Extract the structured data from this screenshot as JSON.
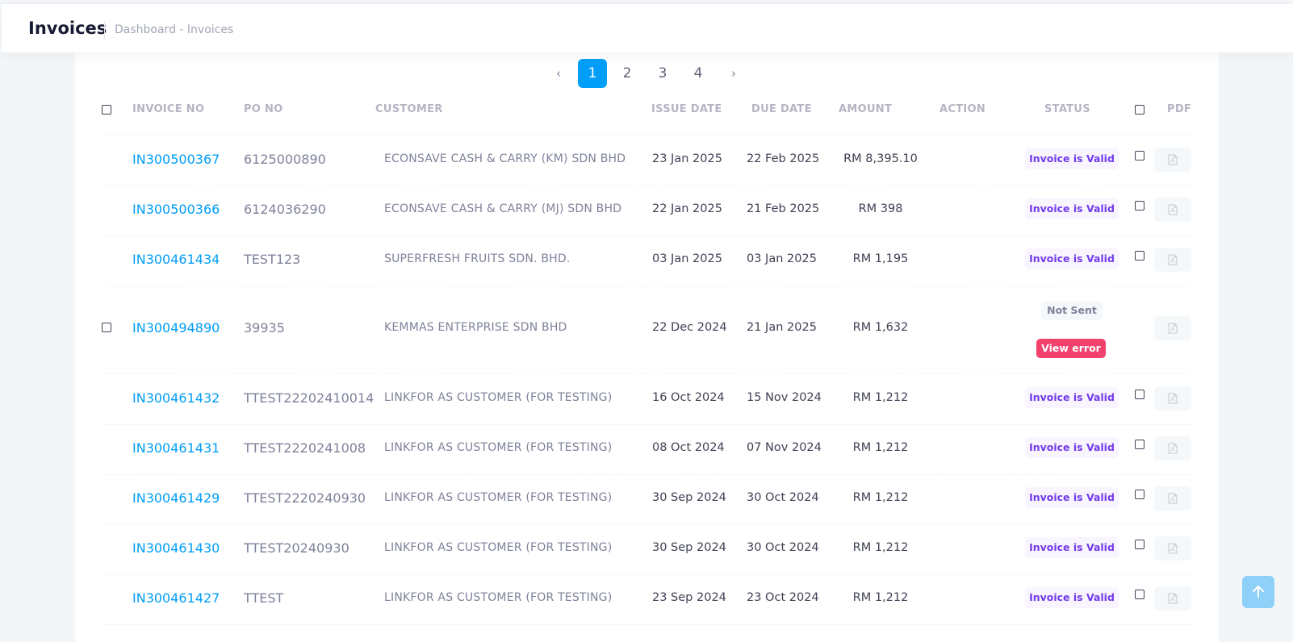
{
  "header": {
    "title": "Invoices",
    "breadcrumb": "Dashboard - Invoices"
  },
  "pagination": {
    "prev": "‹",
    "next": "›",
    "pages": [
      "1",
      "2",
      "3",
      "4"
    ],
    "current": "1"
  },
  "table": {
    "columns": {
      "invoice_no": "INVOICE NO",
      "po_no": "PO NO",
      "customer": "CUSTOMER",
      "issue_date": "ISSUE DATE",
      "due_date": "DUE DATE",
      "amount": "AMOUNT",
      "action": "ACTION",
      "status": "STATUS",
      "pdf": "PDF"
    },
    "rows": [
      {
        "invoice_no": "IN300500367",
        "po_no": "6125000890",
        "customer": "ECONSAVE CASH & CARRY (KM) SDN BHD",
        "issue_date": "23 Jan 2025",
        "due_date": "22 Feb 2025",
        "amount": "RM 8,395.10",
        "status": "Invoice is Valid"
      },
      {
        "invoice_no": "IN300500366",
        "po_no": "6124036290",
        "customer": "ECONSAVE CASH & CARRY (MJ) SDN BHD",
        "issue_date": "22 Jan 2025",
        "due_date": "21 Feb 2025",
        "amount": "RM 398",
        "status": "Invoice is Valid"
      },
      {
        "invoice_no": "IN300461434",
        "po_no": "TEST123",
        "customer": "SUPERFRESH FRUITS SDN. BHD.",
        "issue_date": "03 Jan 2025",
        "due_date": "03 Jan 2025",
        "amount": "RM 1,195",
        "status": "Invoice is Valid"
      },
      {
        "invoice_no": "IN300494890",
        "po_no": "39935",
        "customer": "KEMMAS ENTERPRISE SDN BHD",
        "issue_date": "22 Dec 2024",
        "due_date": "21 Jan 2025",
        "amount": "RM 1,632",
        "status": "Not Sent",
        "error_button": "View error"
      },
      {
        "invoice_no": "IN300461432",
        "po_no": "TTEST22202410014",
        "customer": "LINKFOR AS CUSTOMER (FOR TESTING)",
        "issue_date": "16 Oct 2024",
        "due_date": "15 Nov 2024",
        "amount": "RM 1,212",
        "status": "Invoice is Valid"
      },
      {
        "invoice_no": "IN300461431",
        "po_no": "TTEST2220241008",
        "customer": "LINKFOR AS CUSTOMER (FOR TESTING)",
        "issue_date": "08 Oct 2024",
        "due_date": "07 Nov 2024",
        "amount": "RM 1,212",
        "status": "Invoice is Valid"
      },
      {
        "invoice_no": "IN300461429",
        "po_no": "TTEST2220240930",
        "customer": "LINKFOR AS CUSTOMER (FOR TESTING)",
        "issue_date": "30 Sep 2024",
        "due_date": "30 Oct 2024",
        "amount": "RM 1,212",
        "status": "Invoice is Valid"
      },
      {
        "invoice_no": "IN300461430",
        "po_no": "TTEST20240930",
        "customer": "LINKFOR AS CUSTOMER (FOR TESTING)",
        "issue_date": "30 Sep 2024",
        "due_date": "30 Oct 2024",
        "amount": "RM 1,212",
        "status": "Invoice is Valid"
      },
      {
        "invoice_no": "IN300461427",
        "po_no": "TTEST",
        "customer": "LINKFOR AS CUSTOMER (FOR TESTING)",
        "issue_date": "23 Sep 2024",
        "due_date": "23 Oct 2024",
        "amount": "RM 1,212",
        "status": "Invoice is Valid"
      }
    ]
  },
  "icons": {
    "pdf": "pdf-file-icon",
    "scroll_top": "arrow-up-icon"
  },
  "colors": {
    "accent": "#009ef7",
    "valid_text": "#7239ea",
    "valid_bg": "#f8f5ff",
    "error": "#f1416c"
  }
}
